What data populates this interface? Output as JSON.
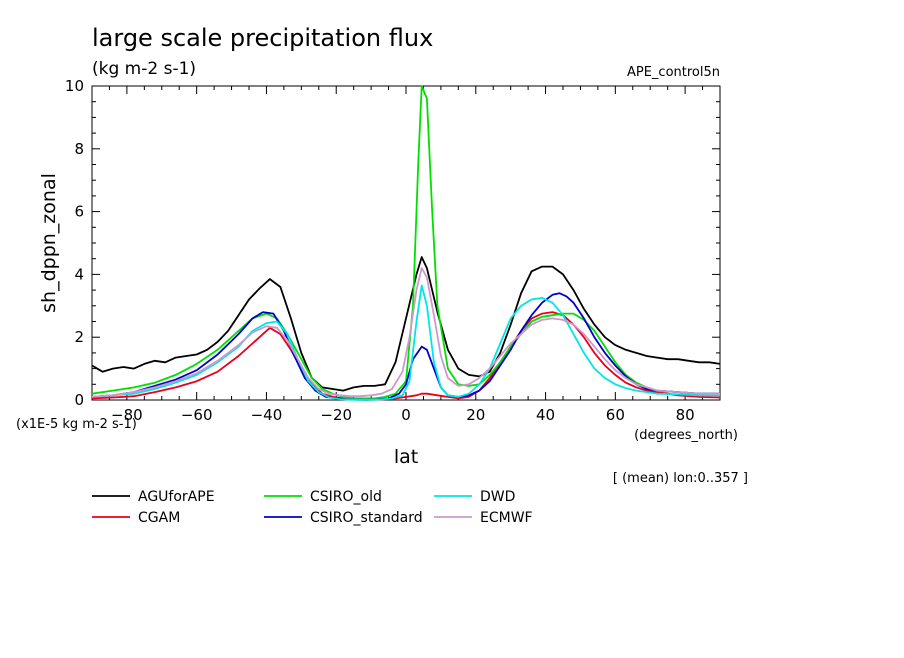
{
  "chart_data": {
    "type": "line",
    "title": "large scale precipitation flux",
    "units": "(kg m-2 s-1)",
    "experiment": "APE_control5n",
    "ylabel": "sh_dppn_zonal",
    "xlabel": "lat",
    "xunits": "(degrees_north)",
    "yscale_label": "(x1E-5 kg m-2 s-1)",
    "averaging_note": "[ (mean) lon:0..357 ]",
    "xlim": [
      -90,
      90
    ],
    "ylim": [
      0,
      10
    ],
    "x_ticks": [
      -80,
      -60,
      -40,
      -20,
      0,
      20,
      40,
      60,
      80
    ],
    "y_ticks": [
      0,
      2,
      4,
      6,
      8,
      10
    ],
    "series": [
      {
        "name": "AGUforAPE",
        "color": "#000000",
        "x": [
          -90,
          -87,
          -84,
          -81,
          -78,
          -75,
          -72,
          -69,
          -66,
          -63,
          -60,
          -57,
          -54,
          -51,
          -48,
          -45,
          -42,
          -39,
          -36,
          -33,
          -30,
          -27,
          -24,
          -21,
          -18,
          -15,
          -12,
          -9,
          -6,
          -3,
          0,
          3,
          4.5,
          6,
          9,
          12,
          15,
          18,
          21,
          24,
          27,
          30,
          33,
          36,
          39,
          42,
          45,
          48,
          51,
          54,
          57,
          60,
          63,
          66,
          69,
          72,
          75,
          78,
          81,
          84,
          87,
          90
        ],
        "values": [
          1.1,
          0.9,
          1.0,
          1.05,
          1.0,
          1.15,
          1.25,
          1.2,
          1.35,
          1.4,
          1.45,
          1.6,
          1.85,
          2.2,
          2.7,
          3.2,
          3.55,
          3.85,
          3.6,
          2.6,
          1.5,
          0.7,
          0.4,
          0.35,
          0.3,
          0.4,
          0.45,
          0.45,
          0.5,
          1.2,
          2.6,
          4.0,
          4.55,
          4.2,
          2.8,
          1.6,
          1.0,
          0.8,
          0.75,
          0.9,
          1.5,
          2.4,
          3.4,
          4.1,
          4.25,
          4.25,
          4.0,
          3.5,
          2.9,
          2.4,
          2.0,
          1.75,
          1.6,
          1.5,
          1.4,
          1.35,
          1.3,
          1.3,
          1.25,
          1.2,
          1.2,
          1.15
        ]
      },
      {
        "name": "CGAM",
        "color": "#e8001c",
        "x": [
          -90,
          -84,
          -78,
          -72,
          -66,
          -60,
          -54,
          -48,
          -42,
          -39,
          -36,
          -33,
          -30,
          -27,
          -24,
          -21,
          -18,
          -15,
          -12,
          -9,
          -6,
          -3,
          0,
          3,
          4.5,
          6,
          9,
          12,
          15,
          18,
          21,
          24,
          27,
          30,
          33,
          36,
          39,
          42,
          45,
          48,
          51,
          54,
          57,
          60,
          63,
          66,
          69,
          72,
          75,
          78,
          84,
          90
        ],
        "values": [
          0.05,
          0.08,
          0.12,
          0.25,
          0.4,
          0.6,
          0.9,
          1.4,
          2.0,
          2.3,
          2.1,
          1.6,
          1.0,
          0.5,
          0.2,
          0.1,
          0.05,
          0.02,
          0.01,
          0.01,
          0.02,
          0.05,
          0.1,
          0.15,
          0.2,
          0.2,
          0.15,
          0.1,
          0.05,
          0.1,
          0.3,
          0.7,
          1.2,
          1.7,
          2.2,
          2.6,
          2.75,
          2.8,
          2.7,
          2.4,
          2.0,
          1.5,
          1.1,
          0.8,
          0.55,
          0.4,
          0.3,
          0.25,
          0.2,
          0.15,
          0.1,
          0.08
        ]
      },
      {
        "name": "CSIRO_old",
        "color": "#00e000",
        "x": [
          -90,
          -84,
          -78,
          -72,
          -66,
          -60,
          -54,
          -48,
          -44,
          -40,
          -37,
          -34,
          -30,
          -27,
          -24,
          -21,
          -18,
          -15,
          -12,
          -9,
          -6,
          -3,
          0,
          2,
          3.5,
          4.5,
          6,
          7.5,
          9,
          12,
          15,
          18,
          21,
          24,
          27,
          30,
          33,
          36,
          39,
          42,
          45,
          48,
          51,
          54,
          57,
          60,
          63,
          66,
          69,
          72,
          78,
          84,
          90
        ],
        "values": [
          0.2,
          0.3,
          0.4,
          0.55,
          0.8,
          1.15,
          1.6,
          2.2,
          2.6,
          2.75,
          2.6,
          2.1,
          1.3,
          0.7,
          0.35,
          0.2,
          0.1,
          0.05,
          0.05,
          0.05,
          0.1,
          0.2,
          0.6,
          3.0,
          7.5,
          10.4,
          9.6,
          6.0,
          3.0,
          1.0,
          0.5,
          0.45,
          0.5,
          0.8,
          1.2,
          1.7,
          2.1,
          2.5,
          2.65,
          2.7,
          2.75,
          2.75,
          2.55,
          2.2,
          1.7,
          1.2,
          0.8,
          0.55,
          0.4,
          0.3,
          0.25,
          0.2,
          0.2
        ]
      },
      {
        "name": "CSIRO_standard",
        "color": "#0000cc",
        "x": [
          -90,
          -84,
          -78,
          -72,
          -66,
          -60,
          -54,
          -48,
          -44,
          -41,
          -38,
          -35,
          -32,
          -29,
          -26,
          -23,
          -20,
          -17,
          -14,
          -11,
          -8,
          -5,
          -2,
          0,
          2,
          4.5,
          6,
          8,
          10,
          12,
          15,
          18,
          21,
          24,
          27,
          30,
          33,
          36,
          39,
          42,
          44,
          46,
          48,
          51,
          54,
          57,
          60,
          63,
          66,
          69,
          72,
          78,
          84,
          90
        ],
        "values": [
          0.1,
          0.15,
          0.25,
          0.45,
          0.65,
          0.95,
          1.45,
          2.1,
          2.6,
          2.8,
          2.75,
          2.2,
          1.4,
          0.7,
          0.3,
          0.1,
          0.05,
          0.02,
          0.01,
          0.01,
          0.02,
          0.05,
          0.2,
          0.5,
          1.3,
          1.7,
          1.6,
          1.0,
          0.4,
          0.15,
          0.1,
          0.15,
          0.3,
          0.6,
          1.1,
          1.6,
          2.2,
          2.7,
          3.1,
          3.35,
          3.4,
          3.3,
          3.1,
          2.6,
          2.0,
          1.5,
          1.1,
          0.75,
          0.5,
          0.35,
          0.3,
          0.25,
          0.2,
          0.2
        ]
      },
      {
        "name": "DWD",
        "color": "#00e5e5",
        "x": [
          -90,
          -84,
          -78,
          -72,
          -66,
          -60,
          -54,
          -48,
          -44,
          -40,
          -37,
          -34,
          -31,
          -28,
          -25,
          -22,
          -19,
          -16,
          -13,
          -10,
          -7,
          -4,
          -1,
          1,
          3,
          4.5,
          6,
          8,
          10,
          12,
          15,
          18,
          21,
          24,
          27,
          30,
          33,
          36,
          39,
          42,
          45,
          48,
          51,
          54,
          57,
          60,
          63,
          66,
          69,
          72,
          78,
          84,
          90
        ],
        "values": [
          0.1,
          0.15,
          0.2,
          0.35,
          0.55,
          0.8,
          1.2,
          1.7,
          2.2,
          2.45,
          2.5,
          2.1,
          1.3,
          0.6,
          0.25,
          0.08,
          0.03,
          0.01,
          0.01,
          0.01,
          0.02,
          0.05,
          0.15,
          0.6,
          2.5,
          3.65,
          3.0,
          1.2,
          0.4,
          0.15,
          0.1,
          0.2,
          0.5,
          1.0,
          1.8,
          2.6,
          3.0,
          3.2,
          3.25,
          3.1,
          2.7,
          2.1,
          1.5,
          1.0,
          0.7,
          0.5,
          0.38,
          0.3,
          0.25,
          0.2,
          0.18,
          0.15,
          0.15
        ]
      },
      {
        "name": "ECMWF",
        "color": "#cc99cc",
        "x": [
          -90,
          -84,
          -78,
          -72,
          -66,
          -60,
          -54,
          -48,
          -44,
          -40,
          -37,
          -34,
          -31,
          -28,
          -25,
          -22,
          -19,
          -16,
          -13,
          -10,
          -7,
          -4,
          -1,
          1,
          3,
          4.5,
          6,
          8,
          10,
          12,
          15,
          18,
          21,
          24,
          27,
          30,
          33,
          36,
          39,
          42,
          45,
          48,
          51,
          54,
          57,
          60,
          63,
          66,
          69,
          72,
          78,
          84,
          90
        ],
        "values": [
          0.1,
          0.15,
          0.25,
          0.4,
          0.6,
          0.85,
          1.25,
          1.75,
          2.15,
          2.35,
          2.3,
          1.9,
          1.3,
          0.7,
          0.35,
          0.2,
          0.15,
          0.12,
          0.12,
          0.15,
          0.2,
          0.35,
          0.9,
          2.0,
          3.5,
          4.2,
          3.9,
          2.7,
          1.4,
          0.7,
          0.45,
          0.5,
          0.7,
          1.0,
          1.4,
          1.8,
          2.1,
          2.4,
          2.55,
          2.6,
          2.55,
          2.4,
          2.1,
          1.7,
          1.3,
          0.95,
          0.7,
          0.5,
          0.4,
          0.3,
          0.25,
          0.2,
          0.2
        ]
      }
    ]
  }
}
